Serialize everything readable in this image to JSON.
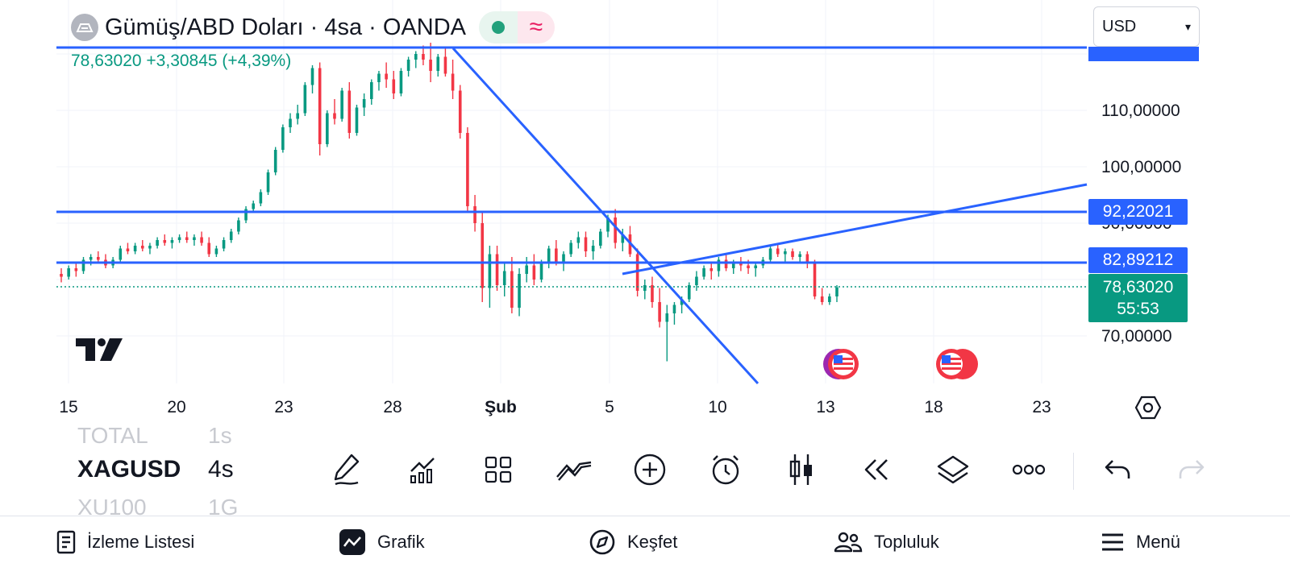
{
  "header": {
    "title": "Gümüş/ABD Doları · 4sa · OANDA",
    "currency_select": "USD",
    "quote": "78,63020  +3,30845 (+4,39%)"
  },
  "price_axis": {
    "labels": [
      "110,00000",
      "100,00000",
      "90,00000",
      "70,00000"
    ],
    "badges": {
      "resistance": "92,22021",
      "support": "82,89212",
      "last_price": "78,63020",
      "countdown": "55:53"
    }
  },
  "time_axis": {
    "labels": [
      "15",
      "20",
      "23",
      "28",
      "Şub",
      "5",
      "10",
      "13",
      "18",
      "23"
    ]
  },
  "chart_data": {
    "type": "candlestick",
    "symbol": "XAGUSD",
    "interval": "4s",
    "yrange": [
      66,
      122
    ],
    "candles": [
      [
        81.0,
        82.0,
        79.5,
        80.5
      ],
      [
        80.5,
        82.5,
        80.0,
        82.0
      ],
      [
        82.0,
        83.0,
        80.5,
        81.5
      ],
      [
        81.5,
        84.0,
        81.0,
        83.5
      ],
      [
        83.5,
        84.5,
        82.5,
        84.0
      ],
      [
        84.0,
        85.0,
        83.0,
        83.5
      ],
      [
        83.5,
        84.5,
        82.0,
        82.5
      ],
      [
        82.5,
        84.0,
        82.0,
        83.5
      ],
      [
        83.5,
        86.0,
        83.0,
        85.5
      ],
      [
        85.5,
        86.5,
        84.5,
        85.0
      ],
      [
        85.0,
        86.5,
        84.5,
        86.0
      ],
      [
        86.0,
        87.0,
        85.0,
        85.5
      ],
      [
        85.5,
        86.5,
        84.5,
        86.0
      ],
      [
        86.0,
        87.5,
        85.5,
        87.0
      ],
      [
        87.0,
        88.0,
        86.0,
        86.5
      ],
      [
        86.5,
        87.5,
        85.5,
        87.0
      ],
      [
        87.0,
        88.0,
        86.5,
        87.5
      ],
      [
        87.5,
        88.5,
        86.5,
        87.0
      ],
      [
        87.0,
        88.0,
        86.0,
        87.5
      ],
      [
        87.5,
        88.5,
        86.0,
        86.5
      ],
      [
        86.5,
        87.5,
        84.0,
        84.5
      ],
      [
        84.5,
        86.0,
        84.0,
        85.5
      ],
      [
        85.5,
        87.5,
        85.0,
        87.0
      ],
      [
        87.0,
        89.0,
        86.5,
        88.5
      ],
      [
        88.5,
        91.0,
        88.0,
        90.5
      ],
      [
        90.5,
        93.0,
        90.0,
        92.5
      ],
      [
        92.5,
        94.0,
        92.0,
        93.5
      ],
      [
        93.5,
        96.0,
        93.0,
        95.5
      ],
      [
        95.5,
        99.5,
        95.0,
        99.0
      ],
      [
        99.0,
        103.5,
        98.5,
        103.0
      ],
      [
        103.0,
        107.5,
        102.5,
        107.0
      ],
      [
        107.0,
        109.5,
        106.0,
        108.5
      ],
      [
        108.5,
        111.0,
        107.5,
        109.5
      ],
      [
        109.5,
        115.0,
        109.0,
        114.5
      ],
      [
        114.5,
        118.0,
        113.0,
        117.5
      ],
      [
        117.5,
        118.5,
        102.0,
        104.0
      ],
      [
        104.0,
        110.0,
        103.5,
        109.5
      ],
      [
        109.5,
        112.0,
        107.5,
        108.5
      ],
      [
        108.5,
        114.0,
        108.0,
        113.5
      ],
      [
        113.5,
        115.0,
        105.0,
        106.0
      ],
      [
        106.0,
        111.0,
        105.5,
        110.5
      ],
      [
        110.5,
        113.0,
        109.0,
        112.0
      ],
      [
        112.0,
        115.5,
        111.0,
        115.0
      ],
      [
        115.0,
        117.0,
        113.5,
        116.5
      ],
      [
        116.5,
        118.5,
        114.0,
        115.5
      ],
      [
        115.5,
        117.0,
        112.0,
        113.0
      ],
      [
        113.0,
        117.5,
        112.5,
        117.0
      ],
      [
        117.0,
        119.5,
        116.0,
        119.0
      ],
      [
        119.0,
        120.5,
        117.5,
        120.0
      ],
      [
        120.0,
        121.5,
        118.0,
        119.0
      ],
      [
        119.0,
        122.0,
        115.0,
        117.0
      ],
      [
        117.0,
        120.0,
        116.0,
        119.5
      ],
      [
        119.5,
        121.0,
        116.0,
        116.5
      ],
      [
        116.5,
        119.0,
        112.0,
        113.5
      ],
      [
        113.5,
        114.5,
        105.0,
        106.0
      ],
      [
        106.0,
        107.0,
        92.0,
        93.0
      ],
      [
        93.0,
        95.0,
        88.5,
        90.0
      ],
      [
        90.0,
        92.0,
        76.0,
        78.5
      ],
      [
        78.5,
        86.0,
        75.0,
        84.5
      ],
      [
        84.5,
        86.0,
        78.0,
        79.0
      ],
      [
        79.0,
        83.0,
        77.0,
        81.5
      ],
      [
        81.5,
        84.0,
        74.0,
        75.0
      ],
      [
        75.0,
        82.0,
        73.5,
        81.0
      ],
      [
        81.0,
        84.0,
        79.5,
        82.5
      ],
      [
        82.5,
        84.5,
        79.0,
        80.0
      ],
      [
        80.0,
        83.5,
        79.5,
        83.0
      ],
      [
        83.0,
        86.0,
        82.0,
        85.5
      ],
      [
        85.5,
        87.0,
        82.5,
        83.0
      ],
      [
        83.0,
        85.0,
        81.5,
        84.5
      ],
      [
        84.5,
        87.0,
        84.0,
        86.5
      ],
      [
        86.5,
        88.5,
        85.5,
        87.5
      ],
      [
        87.5,
        88.5,
        84.0,
        85.0
      ],
      [
        85.0,
        87.0,
        83.5,
        86.0
      ],
      [
        86.0,
        89.0,
        85.5,
        88.5
      ],
      [
        88.5,
        91.5,
        87.5,
        91.0
      ],
      [
        91.0,
        92.5,
        85.5,
        86.5
      ],
      [
        86.5,
        89.0,
        85.0,
        88.0
      ],
      [
        88.0,
        89.5,
        84.0,
        84.5
      ],
      [
        84.5,
        85.5,
        77.0,
        78.0
      ],
      [
        78.0,
        80.0,
        76.5,
        79.0
      ],
      [
        79.0,
        80.5,
        75.0,
        76.0
      ],
      [
        76.0,
        78.5,
        71.5,
        72.5
      ],
      [
        72.5,
        75.5,
        65.5,
        74.0
      ],
      [
        74.0,
        76.0,
        72.0,
        75.5
      ],
      [
        75.5,
        77.0,
        74.0,
        76.5
      ],
      [
        76.5,
        79.5,
        76.0,
        79.0
      ],
      [
        79.0,
        81.5,
        78.0,
        80.5
      ],
      [
        80.5,
        82.5,
        80.0,
        82.0
      ],
      [
        82.0,
        83.0,
        80.0,
        81.5
      ],
      [
        81.5,
        84.0,
        80.5,
        83.5
      ],
      [
        83.5,
        84.5,
        81.5,
        82.0
      ],
      [
        82.0,
        83.5,
        81.0,
        83.0
      ],
      [
        83.0,
        84.0,
        81.5,
        82.5
      ],
      [
        82.5,
        83.5,
        81.0,
        82.0
      ],
      [
        82.0,
        83.0,
        80.5,
        82.5
      ],
      [
        82.5,
        84.0,
        82.0,
        83.5
      ],
      [
        83.5,
        86.0,
        83.0,
        85.5
      ],
      [
        85.5,
        86.5,
        84.0,
        84.5
      ],
      [
        84.5,
        85.5,
        83.0,
        85.0
      ],
      [
        85.0,
        85.5,
        83.5,
        84.0
      ],
      [
        84.0,
        85.0,
        83.0,
        84.5
      ],
      [
        84.5,
        85.0,
        82.0,
        83.0
      ],
      [
        83.0,
        83.5,
        76.5,
        77.0
      ],
      [
        77.0,
        78.5,
        75.5,
        76.0
      ],
      [
        76.0,
        77.5,
        75.5,
        77.0
      ],
      [
        77.0,
        79.0,
        76.0,
        78.6
      ]
    ]
  },
  "watchlist": {
    "rows": [
      {
        "symbol": "TOTAL",
        "tf": "1s"
      },
      {
        "symbol": "XAGUSD",
        "tf": "4s"
      },
      {
        "symbol": "XU100",
        "tf": "1G"
      }
    ]
  },
  "toolbar": {
    "icons": [
      "pencil-icon",
      "indicators-icon",
      "layout-grid-icon",
      "drawing-tools-icon",
      "add-icon",
      "alarm-icon",
      "candle-type-icon",
      "replay-icon",
      "layers-icon",
      "more-icon",
      "undo-icon",
      "redo-icon"
    ]
  },
  "nav": {
    "watchlist": "İzleme Listesi",
    "chart": "Grafik",
    "explore": "Keşfet",
    "community": "Topluluk",
    "menu": "Menü"
  },
  "colors": {
    "up": "#089981",
    "down": "#f23645",
    "drawing": "#2962ff"
  }
}
